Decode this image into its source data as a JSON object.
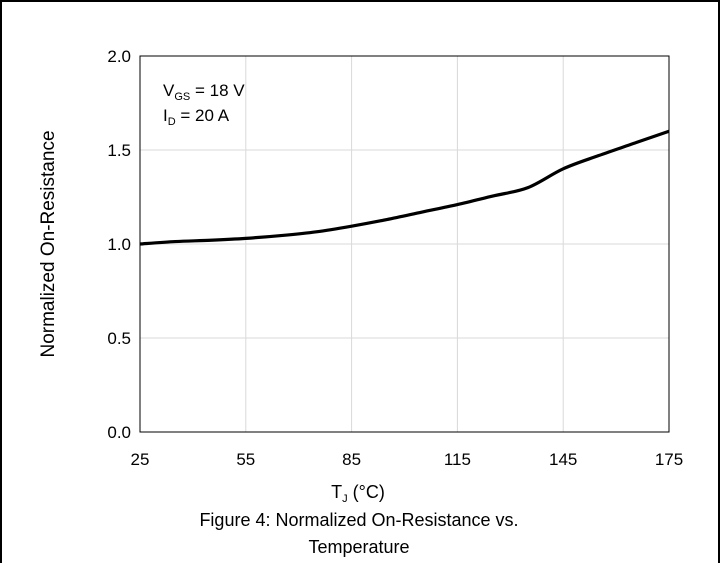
{
  "chart_data": {
    "type": "line",
    "title": "Figure 4: Normalized On-Resistance vs. Temperature",
    "title_lines": [
      "Figure 4: Normalized On-Resistance vs.",
      "Temperature"
    ],
    "xlabel_main": "T",
    "xlabel_sub": "J",
    "xlabel_unit": " (°C)",
    "ylabel": "Normalized On-Resistance",
    "xlim": [
      25,
      175
    ],
    "ylim": [
      0,
      2.0
    ],
    "x_ticks": [
      25,
      55,
      85,
      115,
      145,
      175
    ],
    "x_tick_labels": [
      "25",
      "55",
      "85",
      "115",
      "145",
      "175"
    ],
    "y_ticks": [
      0,
      0.5,
      1.0,
      1.5,
      2.0
    ],
    "y_tick_labels": [
      "0.0",
      "0.5",
      "1.0",
      "1.5",
      "2.0"
    ],
    "grid": true,
    "annotations": {
      "vgs_main": "V",
      "vgs_sub": "GS",
      "vgs_rest": " = 18 V",
      "id_main": "I",
      "id_sub": "D",
      "id_rest": " = 20 A"
    },
    "series": [
      {
        "color": "#000000",
        "x": [
          25,
          35,
          45,
          55,
          65,
          75,
          85,
          95,
          105,
          115,
          125,
          135,
          145,
          155,
          165,
          175
        ],
        "y": [
          1.0,
          1.013,
          1.02,
          1.03,
          1.045,
          1.065,
          1.095,
          1.13,
          1.17,
          1.21,
          1.255,
          1.3,
          1.4,
          1.47,
          1.535,
          1.6
        ]
      }
    ]
  }
}
